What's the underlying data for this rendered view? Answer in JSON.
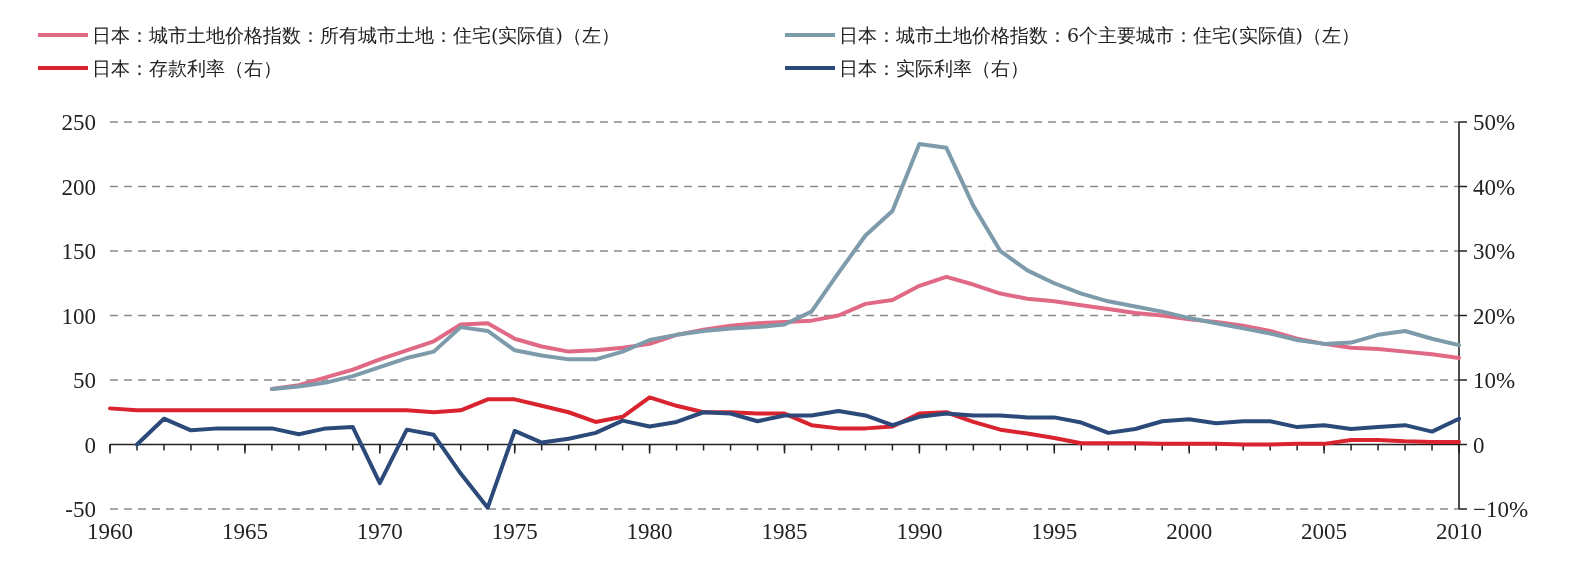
{
  "chart_data": {
    "type": "line",
    "x": [
      1960,
      1961,
      1962,
      1963,
      1964,
      1965,
      1966,
      1967,
      1968,
      1969,
      1970,
      1971,
      1972,
      1973,
      1974,
      1975,
      1976,
      1977,
      1978,
      1979,
      1980,
      1981,
      1982,
      1983,
      1984,
      1985,
      1986,
      1987,
      1988,
      1989,
      1990,
      1991,
      1992,
      1993,
      1994,
      1995,
      1996,
      1997,
      1998,
      1999,
      2000,
      2001,
      2002,
      2003,
      2004,
      2005,
      2006,
      2007,
      2008,
      2009,
      2010
    ],
    "series": [
      {
        "name": "日本：城市土地价格指数：所有城市土地：住宅(实际值)（左）",
        "color": "#e06a85",
        "values": [
          null,
          null,
          null,
          null,
          null,
          null,
          43,
          46,
          52,
          58,
          66,
          73,
          80,
          93,
          94,
          82,
          76,
          72,
          73,
          75,
          78,
          85,
          89,
          92,
          94,
          95,
          96,
          100,
          109,
          112,
          123,
          130,
          124,
          117,
          113,
          111,
          108,
          105,
          102,
          100,
          97,
          95,
          92,
          88,
          82,
          78,
          75,
          74,
          72,
          70,
          67
        ]
      },
      {
        "name": "日本：城市土地价格指数：6个主要城市：住宅(实际值)（左）",
        "color": "#7d9bab",
        "values": [
          null,
          null,
          null,
          null,
          null,
          null,
          43,
          45,
          48,
          53,
          60,
          67,
          72,
          91,
          88,
          73,
          69,
          66,
          66,
          72,
          81,
          85,
          88,
          90,
          91,
          93,
          103,
          133,
          162,
          181,
          233,
          230,
          185,
          150,
          135,
          125,
          117,
          111,
          107,
          103,
          98,
          94,
          90,
          86,
          81,
          78,
          79,
          85,
          88,
          82,
          77
        ]
      },
      {
        "name": "日本：存款利率（右）",
        "color": "#d9232e",
        "axis": "y2",
        "values": [
          5.6,
          5.3,
          5.3,
          5.3,
          5.3,
          5.3,
          5.3,
          5.3,
          5.3,
          5.3,
          5.3,
          5.3,
          5.0,
          5.3,
          7.0,
          7.0,
          6.0,
          5.0,
          3.5,
          4.3,
          7.3,
          6.0,
          5.0,
          5.0,
          4.8,
          4.8,
          3.0,
          2.5,
          2.5,
          2.8,
          4.8,
          5.0,
          3.5,
          2.3,
          1.7,
          1.0,
          0.2,
          0.2,
          0.2,
          0.1,
          0.1,
          0.1,
          0.0,
          0.0,
          0.1,
          0.1,
          0.7,
          0.7,
          0.5,
          0.4,
          0.4
        ]
      },
      {
        "name": "日本：实际利率（右）",
        "color": "#2b4a7a",
        "axis": "y2",
        "values": [
          null,
          0,
          4.0,
          2.2,
          2.5,
          2.5,
          2.5,
          1.6,
          2.5,
          2.7,
          -6.0,
          2.3,
          1.5,
          -4.5,
          -9.8,
          2.1,
          0.3,
          0.9,
          1.8,
          3.7,
          2.8,
          3.5,
          5.0,
          4.8,
          3.6,
          4.5,
          4.5,
          5.2,
          4.5,
          3.0,
          4.3,
          4.8,
          4.5,
          4.5,
          4.2,
          4.2,
          3.4,
          1.8,
          2.4,
          3.6,
          3.9,
          3.3,
          3.6,
          3.6,
          2.7,
          3.0,
          2.4,
          2.7,
          3.0,
          2.0,
          4.0
        ]
      }
    ],
    "xlim": [
      1960,
      2010
    ],
    "xticks": [
      1960,
      1965,
      1970,
      1975,
      1980,
      1985,
      1990,
      1995,
      2000,
      2005,
      2010
    ],
    "ylim": [
      -50,
      250
    ],
    "yticks": [
      -50,
      0,
      50,
      100,
      150,
      200,
      250
    ],
    "y2lim": [
      -10,
      50
    ],
    "y2ticks": [
      {
        "value": -10,
        "label": "−10%"
      },
      {
        "value": 0,
        "label": "0"
      },
      {
        "value": 10,
        "label": "10%"
      },
      {
        "value": 20,
        "label": "20%"
      },
      {
        "value": 30,
        "label": "30%"
      },
      {
        "value": 40,
        "label": "40%"
      },
      {
        "value": 50,
        "label": "50%"
      }
    ],
    "grid": "y",
    "legend": "top",
    "line_style": "solid",
    "marker": "none"
  }
}
